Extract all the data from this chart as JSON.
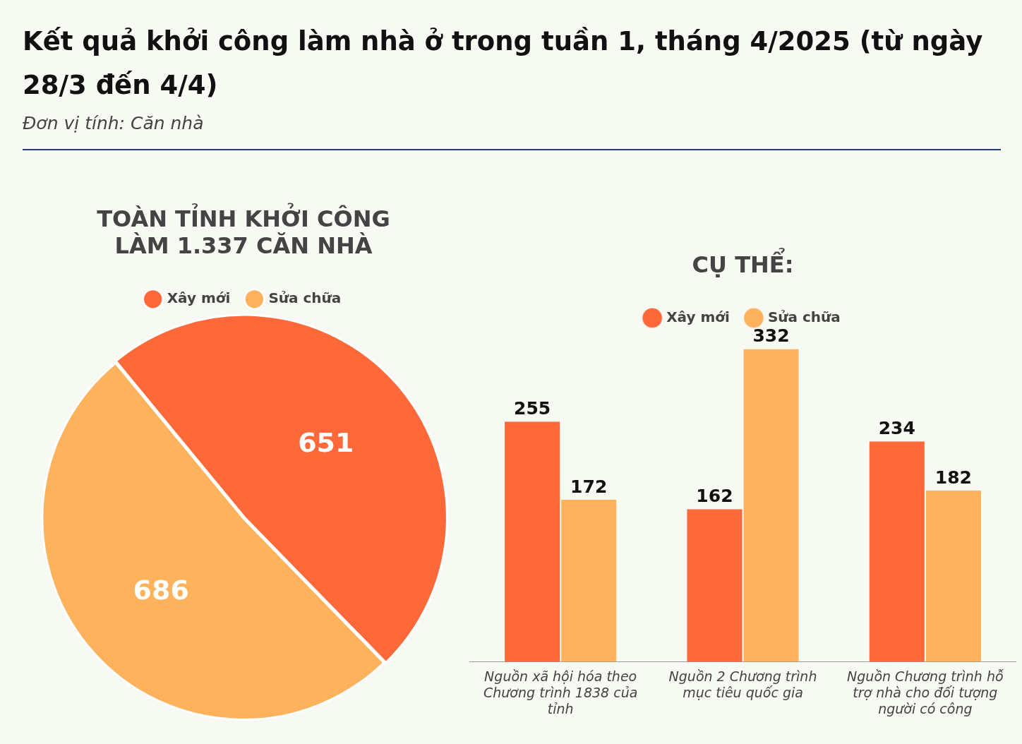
{
  "chart_data": [
    {
      "type": "pie",
      "title": "Kết quả khởi công làm nhà ở trong tuần 1, tháng 4/2025 (từ ngày 28/3 đến 4/4)",
      "subtitle": "Đơn vị tính: Căn nhà",
      "annotations": [
        "TOÀN TỈNH KHỞI CÔNG LÀM 1.337 CĂN NHÀ"
      ],
      "categories": [
        "Xây mới",
        "Sửa chữa"
      ],
      "values": [
        651,
        686
      ],
      "colors": [
        "#ff693a",
        "#ffb25c"
      ],
      "data_labels": true,
      "legend": "top"
    },
    {
      "type": "bar",
      "title": "CỤ THỂ:",
      "categories": [
        "Nguồn xã hội hóa theo Chương trình 1838 của tỉnh",
        "Nguồn 2 Chương trình mục tiêu quốc gia",
        "Nguồn Chương trình hỗ trợ nhà cho đối tượng người có công"
      ],
      "series": [
        {
          "name": "Xây mới",
          "color": "#ff693a",
          "values": [
            255,
            162,
            234
          ]
        },
        {
          "name": "Sửa chữa",
          "color": "#ffb25c",
          "values": [
            172,
            332,
            182
          ]
        }
      ],
      "data_labels": true,
      "legend": "top",
      "grid": false
    }
  ]
}
